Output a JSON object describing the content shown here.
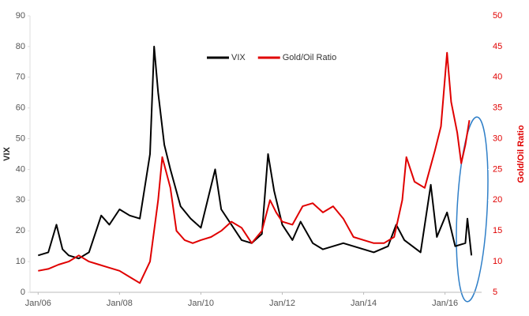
{
  "chart_data": {
    "type": "line",
    "y_label": "VIX",
    "y2_label": "Gold/Oil Ratio",
    "xlim": [
      2005.8,
      2016.9
    ],
    "xticks": [
      {
        "value": 2006,
        "label": "Jan/06"
      },
      {
        "value": 2008,
        "label": "Jan/08"
      },
      {
        "value": 2010,
        "label": "Jan/10"
      },
      {
        "value": 2012,
        "label": "Jan/12"
      },
      {
        "value": 2014,
        "label": "Jan/14"
      },
      {
        "value": 2016,
        "label": "Jan/16"
      }
    ],
    "ylim": [
      0,
      90
    ],
    "yticks": [
      0,
      10,
      20,
      30,
      40,
      50,
      60,
      70,
      80,
      90
    ],
    "y2lim": [
      5,
      50
    ],
    "y2ticks": [
      5,
      10,
      15,
      20,
      25,
      30,
      35,
      40,
      45,
      50
    ],
    "y2_color": "#e00000",
    "legend": "top",
    "series": [
      {
        "name": "VIX",
        "color": "#000000",
        "x": [
          2006.0,
          2006.25,
          2006.45,
          2006.6,
          2006.75,
          2007.0,
          2007.25,
          2007.55,
          2007.75,
          2008.0,
          2008.25,
          2008.5,
          2008.75,
          2008.85,
          2008.95,
          2009.1,
          2009.25,
          2009.5,
          2009.75,
          2010.0,
          2010.35,
          2010.5,
          2010.75,
          2011.0,
          2011.25,
          2011.5,
          2011.65,
          2011.8,
          2012.0,
          2012.25,
          2012.45,
          2012.75,
          2013.0,
          2013.5,
          2014.0,
          2014.25,
          2014.6,
          2014.8,
          2015.0,
          2015.4,
          2015.65,
          2015.8,
          2016.05,
          2016.25,
          2016.5,
          2016.55,
          2016.65
        ],
        "values": [
          12,
          13,
          22,
          14,
          12,
          11,
          13,
          25,
          22,
          27,
          25,
          24,
          45,
          80,
          65,
          48,
          40,
          28,
          24,
          21,
          40,
          27,
          22,
          17,
          16,
          19,
          45,
          33,
          22,
          17,
          23,
          16,
          14,
          16,
          14,
          13,
          15,
          22,
          17,
          13,
          35,
          18,
          26,
          15,
          16,
          24,
          12
        ]
      },
      {
        "name": "Gold/Oil Ratio",
        "color": "#e00000",
        "axis": "y2",
        "x": [
          2006.0,
          2006.25,
          2006.5,
          2006.75,
          2007.0,
          2007.25,
          2007.5,
          2007.75,
          2008.0,
          2008.25,
          2008.5,
          2008.75,
          2008.95,
          2009.05,
          2009.25,
          2009.4,
          2009.6,
          2009.8,
          2010.0,
          2010.25,
          2010.5,
          2010.75,
          2011.0,
          2011.25,
          2011.5,
          2011.7,
          2011.85,
          2012.0,
          2012.25,
          2012.5,
          2012.75,
          2013.0,
          2013.25,
          2013.5,
          2013.75,
          2014.0,
          2014.25,
          2014.5,
          2014.75,
          2014.95,
          2015.05,
          2015.25,
          2015.5,
          2015.75,
          2015.9,
          2016.05,
          2016.15,
          2016.3,
          2016.4,
          2016.5,
          2016.6
        ],
        "values": [
          8.5,
          8.8,
          9.5,
          10,
          11,
          10,
          9.5,
          9,
          8.5,
          7.5,
          6.5,
          10,
          20,
          27,
          22,
          15,
          13.5,
          13,
          13.5,
          14,
          15,
          16.5,
          15.5,
          13,
          15,
          20,
          18,
          16.5,
          16,
          19,
          19.5,
          18,
          19,
          17,
          14,
          13.5,
          13,
          13,
          14,
          20,
          27,
          23,
          22,
          28,
          32,
          44,
          36,
          31,
          26,
          29,
          33
        ]
      }
    ]
  }
}
